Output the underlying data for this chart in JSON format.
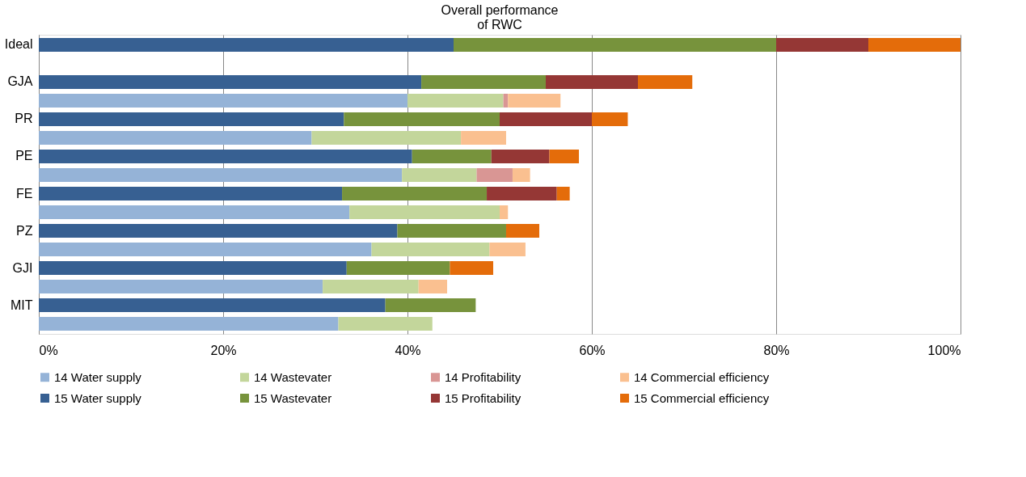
{
  "chart_data": {
    "type": "bar",
    "orientation": "horizontal",
    "stacked": true,
    "title": "Overall performance\nof RWC",
    "categories": [
      "Ideal",
      null,
      "GJA",
      null,
      "PR",
      null,
      "PE",
      null,
      "FE",
      null,
      "PZ",
      null,
      "GJI",
      null,
      "MIT",
      null
    ],
    "xlim": [
      0,
      100
    ],
    "xticks": [
      {
        "value": 0,
        "label": "0%"
      },
      {
        "value": 20,
        "label": "20%"
      },
      {
        "value": 40,
        "label": "40%"
      },
      {
        "value": 60,
        "label": "60%"
      },
      {
        "value": 80,
        "label": "80%"
      },
      {
        "value": 100,
        "label": "100%"
      }
    ],
    "grid": "x",
    "legend": "bottom",
    "series": [
      {
        "name": "14 Water supply",
        "color": "#95b3d7",
        "values": [
          null,
          null,
          null,
          40,
          null,
          29.6,
          null,
          39.4,
          null,
          33.7,
          null,
          36.1,
          null,
          30.8,
          null,
          32.5
        ]
      },
      {
        "name": "14 Wastevater",
        "color": "#c3d69b",
        "values": [
          null,
          null,
          null,
          10.4,
          null,
          16.2,
          null,
          8.1,
          null,
          16.3,
          null,
          12.8,
          null,
          10.4,
          null,
          10.2
        ]
      },
      {
        "name": "14 Profitability",
        "color": "#d99694",
        "values": [
          null,
          null,
          null,
          0.5,
          null,
          null,
          null,
          3.9,
          null,
          null,
          null,
          null,
          null,
          null,
          null,
          null
        ]
      },
      {
        "name": "14 Commercial efficiency",
        "color": "#fac090",
        "values": [
          null,
          null,
          null,
          5.7,
          null,
          4.9,
          null,
          1.9,
          null,
          0.9,
          null,
          3.9,
          null,
          3.1,
          null,
          null
        ]
      },
      {
        "name": "15 Water supply",
        "color": "#376092",
        "values": [
          45,
          null,
          41.5,
          null,
          33.1,
          null,
          40.5,
          null,
          32.9,
          null,
          38.9,
          null,
          33.4,
          null,
          37.6,
          null
        ]
      },
      {
        "name": "15 Wastevater",
        "color": "#77933c",
        "values": [
          35,
          null,
          13.5,
          null,
          16.9,
          null,
          8.6,
          null,
          15.7,
          null,
          11.8,
          null,
          11.2,
          null,
          9.8,
          null
        ]
      },
      {
        "name": "15 Profitability",
        "color": "#953735",
        "values": [
          10,
          null,
          10,
          null,
          10,
          null,
          6.3,
          null,
          7.6,
          null,
          null,
          null,
          null,
          null,
          null,
          null
        ]
      },
      {
        "name": "15 Commercial efficiency",
        "color": "#e46c0a",
        "values": [
          10,
          null,
          5.9,
          null,
          3.9,
          null,
          3.2,
          null,
          1.4,
          null,
          3.6,
          null,
          4.7,
          null,
          null,
          null
        ]
      }
    ]
  }
}
